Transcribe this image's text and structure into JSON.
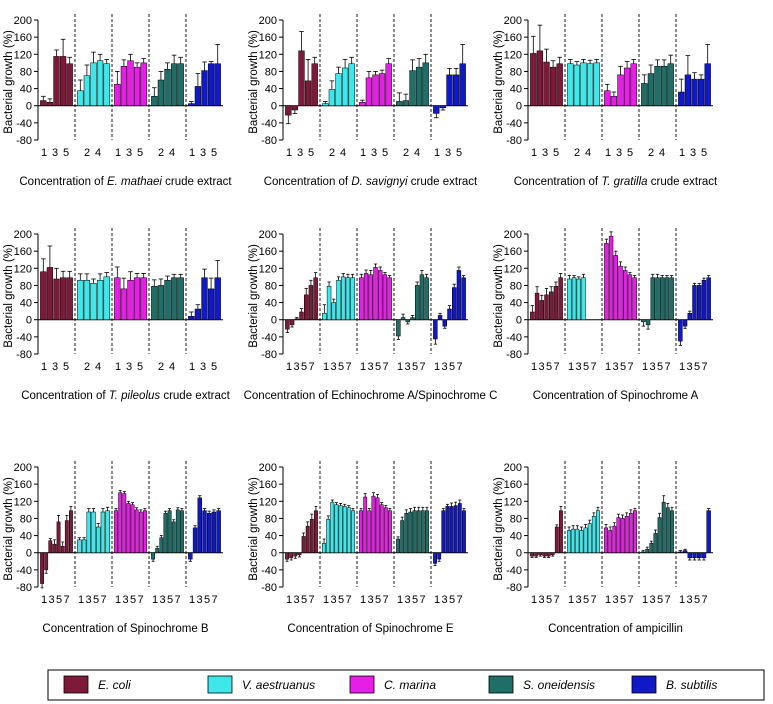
{
  "figure": {
    "y_axis_label": "Bacterial growth (%)",
    "y_ticks": [
      -80,
      -40,
      0,
      40,
      80,
      120,
      160,
      200
    ],
    "legend": [
      {
        "label": "E. coli",
        "color": "#7d1a3a"
      },
      {
        "label": "V. aestruanus",
        "color": "#3ee8ea"
      },
      {
        "label": "C. marina",
        "color": "#e61ee6"
      },
      {
        "label": "S. oneidensis",
        "color": "#1f6f68"
      },
      {
        "label": "B. subtilis",
        "color": "#1018c8"
      }
    ]
  },
  "chart_data": [
    {
      "type": "bar",
      "xlabel_pre": "Concentration of ",
      "xlabel_italic": "E. mathaei",
      "xlabel_post": " crude extract",
      "ylabel": "Bacterial growth (%)",
      "ylim": [
        -80,
        200
      ],
      "x_ticks": [
        [
          "1",
          "3",
          "5"
        ],
        [
          "2",
          "4"
        ],
        [
          "1",
          "3",
          "5"
        ],
        [
          "2",
          "4"
        ],
        [
          "1",
          "3",
          "5"
        ]
      ],
      "series": [
        {
          "values": [
            12,
            8,
            115,
            115,
            98
          ],
          "errors": [
            10,
            8,
            15,
            40,
            15
          ]
        },
        {
          "values": [
            35,
            70,
            100,
            105,
            98
          ],
          "errors": [
            25,
            25,
            25,
            15,
            10
          ]
        },
        {
          "values": [
            50,
            92,
            105,
            90,
            100
          ],
          "errors": [
            30,
            15,
            15,
            10,
            10
          ]
        },
        {
          "values": [
            22,
            60,
            85,
            98,
            98
          ],
          "errors": [
            20,
            20,
            15,
            20,
            15
          ]
        },
        {
          "values": [
            5,
            45,
            82,
            98,
            98
          ],
          "errors": [
            5,
            30,
            20,
            5,
            45
          ]
        }
      ]
    },
    {
      "type": "bar",
      "xlabel_pre": "Concentration of ",
      "xlabel_italic": "D. savignyi",
      "xlabel_post": " crude extract",
      "ylabel": "Bacterial growth (%)",
      "ylim": [
        -80,
        200
      ],
      "x_ticks": [
        [
          "1",
          "3",
          "5"
        ],
        [
          "2",
          "4"
        ],
        [
          "1",
          "3",
          "5"
        ],
        [
          "2",
          "4"
        ],
        [
          "1",
          "3",
          "5"
        ]
      ],
      "series": [
        {
          "values": [
            -22,
            -10,
            128,
            58,
            98
          ],
          "errors": [
            20,
            8,
            45,
            50,
            15
          ]
        },
        {
          "values": [
            5,
            38,
            75,
            88,
            98
          ],
          "errors": [
            5,
            20,
            15,
            20,
            15
          ]
        },
        {
          "values": [
            8,
            65,
            72,
            75,
            98
          ],
          "errors": [
            5,
            15,
            8,
            8,
            12
          ]
        },
        {
          "values": [
            10,
            12,
            82,
            90,
            100
          ],
          "errors": [
            20,
            15,
            25,
            20,
            20
          ]
        },
        {
          "values": [
            -18,
            -5,
            72,
            72,
            98
          ],
          "errors": [
            10,
            5,
            15,
            15,
            45
          ]
        }
      ]
    },
    {
      "type": "bar",
      "xlabel_pre": "Concentration of ",
      "xlabel_italic": "T. gratilla",
      "xlabel_post": " crude extract",
      "ylabel": "Bacterial growth (%)",
      "ylim": [
        -80,
        200
      ],
      "x_ticks": [
        [
          "1",
          "3",
          "5"
        ],
        [
          "2",
          "4"
        ],
        [
          "1",
          "3",
          "5"
        ],
        [
          "2",
          "4"
        ],
        [
          "1",
          "3",
          "5"
        ]
      ],
      "series": [
        {
          "values": [
            122,
            128,
            102,
            90,
            98
          ],
          "errors": [
            40,
            60,
            30,
            15,
            15
          ]
        },
        {
          "values": [
            98,
            95,
            100,
            98,
            100
          ],
          "errors": [
            10,
            8,
            8,
            8,
            8
          ]
        },
        {
          "values": [
            35,
            22,
            72,
            88,
            98
          ],
          "errors": [
            15,
            10,
            20,
            15,
            10
          ]
        },
        {
          "values": [
            52,
            75,
            92,
            92,
            98
          ],
          "errors": [
            20,
            20,
            15,
            15,
            20
          ]
        },
        {
          "values": [
            32,
            72,
            62,
            62,
            98
          ],
          "errors": [
            30,
            45,
            15,
            10,
            45
          ]
        }
      ]
    },
    {
      "type": "bar",
      "xlabel_pre": "Concentration of ",
      "xlabel_italic": "T. pileolus",
      "xlabel_post": " crude extract",
      "ylabel": "Bacterial growth (%)",
      "ylim": [
        -80,
        200
      ],
      "x_ticks": [
        [
          "1",
          "3",
          "5"
        ],
        [
          "2",
          "4"
        ],
        [
          "1",
          "3",
          "5"
        ],
        [
          "2",
          "4"
        ],
        [
          "1",
          "3",
          "5"
        ]
      ],
      "series": [
        {
          "values": [
            112,
            122,
            95,
            98,
            98
          ],
          "errors": [
            30,
            50,
            25,
            15,
            15
          ]
        },
        {
          "values": [
            92,
            92,
            85,
            92,
            100
          ],
          "errors": [
            15,
            15,
            10,
            15,
            10
          ]
        },
        {
          "values": [
            98,
            72,
            92,
            98,
            98
          ],
          "errors": [
            25,
            25,
            20,
            10,
            10
          ]
        },
        {
          "values": [
            78,
            80,
            92,
            98,
            98
          ],
          "errors": [
            15,
            15,
            10,
            8,
            8
          ]
        },
        {
          "values": [
            8,
            25,
            98,
            72,
            98
          ],
          "errors": [
            10,
            10,
            20,
            25,
            40
          ]
        }
      ]
    },
    {
      "type": "bar",
      "xlabel_pre": "Concentration of Echinochrome A/Spinochrome C",
      "xlabel_italic": "",
      "xlabel_post": "",
      "ylabel": "Bacterial growth (%)",
      "ylim": [
        -80,
        200
      ],
      "x_ticks": [
        [
          "1",
          "3",
          "5",
          "7"
        ],
        [
          "1",
          "3",
          "5",
          "7"
        ],
        [
          "1",
          "3",
          "5",
          "7"
        ],
        [
          "1",
          "3",
          "5",
          "7"
        ],
        [
          "1",
          "3",
          "5",
          "7"
        ]
      ],
      "series": [
        {
          "values": [
            -22,
            -12,
            2,
            18,
            58,
            80,
            98
          ],
          "errors": [
            8,
            5,
            3,
            8,
            15,
            12,
            12
          ]
        },
        {
          "values": [
            15,
            78,
            40,
            92,
            100,
            98,
            98
          ],
          "errors": [
            20,
            10,
            8,
            8,
            8,
            8,
            8
          ]
        },
        {
          "values": [
            98,
            108,
            105,
            122,
            115,
            105,
            98
          ],
          "errors": [
            8,
            8,
            10,
            8,
            8,
            5,
            5
          ]
        },
        {
          "values": [
            -38,
            5,
            -5,
            5,
            80,
            105,
            98
          ],
          "errors": [
            8,
            8,
            5,
            5,
            8,
            10,
            8
          ]
        },
        {
          "values": [
            -45,
            10,
            -15,
            25,
            75,
            115,
            98
          ],
          "errors": [
            12,
            5,
            5,
            8,
            8,
            8,
            5
          ]
        }
      ]
    },
    {
      "type": "bar",
      "xlabel_pre": "Concentration of Spinochrome A",
      "xlabel_italic": "",
      "xlabel_post": "",
      "ylabel": "Bacterial growth (%)",
      "ylim": [
        -80,
        200
      ],
      "x_ticks": [
        [
          "1",
          "3",
          "5",
          "7"
        ],
        [
          "1",
          "3",
          "5",
          "7"
        ],
        [
          "1",
          "3",
          "5",
          "7"
        ],
        [
          "1",
          "3",
          "5",
          "7"
        ],
        [
          "1",
          "3",
          "5",
          "7"
        ]
      ],
      "series": [
        {
          "values": [
            18,
            62,
            45,
            58,
            65,
            78,
            98
          ],
          "errors": [
            15,
            15,
            12,
            15,
            12,
            10,
            10
          ]
        },
        {
          "values": [
            95,
            98,
            95,
            98,
            0,
            0,
            0
          ],
          "errors": [
            8,
            5,
            5,
            8,
            0,
            0,
            0
          ]
        },
        {
          "values": [
            178,
            195,
            150,
            125,
            115,
            105,
            98
          ],
          "errors": [
            10,
            10,
            10,
            10,
            8,
            5,
            5
          ]
        },
        {
          "values": [
            -5,
            -12,
            98,
            98,
            98,
            98,
            98
          ],
          "errors": [
            10,
            10,
            8,
            8,
            5,
            5,
            5
          ]
        },
        {
          "values": [
            -50,
            -15,
            15,
            80,
            80,
            92,
            98
          ],
          "errors": [
            10,
            5,
            5,
            5,
            5,
            5,
            5
          ]
        }
      ]
    },
    {
      "type": "bar",
      "xlabel_pre": "Concentration of Spinochrome B",
      "xlabel_italic": "",
      "xlabel_post": "",
      "ylabel": "Bacterial growth (%)",
      "ylim": [
        -80,
        200
      ],
      "x_ticks": [
        [
          "1",
          "3",
          "5",
          "7"
        ],
        [
          "1",
          "3",
          "5",
          "7"
        ],
        [
          "1",
          "3",
          "5",
          "7"
        ],
        [
          "1",
          "3",
          "5",
          "7"
        ],
        [
          "1",
          "3",
          "5",
          "7"
        ]
      ],
      "series": [
        {
          "values": [
            -72,
            -40,
            28,
            20,
            72,
            15,
            75,
            98
          ],
          "errors": [
            10,
            8,
            5,
            10,
            15,
            10,
            12,
            10
          ]
        },
        {
          "values": [
            30,
            30,
            95,
            95,
            60,
            95,
            98
          ],
          "errors": [
            5,
            5,
            8,
            8,
            8,
            8,
            8
          ]
        },
        {
          "values": [
            98,
            140,
            138,
            115,
            112,
            100,
            95,
            98
          ],
          "errors": [
            5,
            5,
            5,
            5,
            5,
            5,
            5,
            5
          ]
        },
        {
          "values": [
            -15,
            10,
            35,
            92,
            98,
            72,
            100,
            98
          ],
          "errors": [
            5,
            5,
            5,
            5,
            5,
            5,
            5,
            5
          ]
        },
        {
          "values": [
            -15,
            58,
            128,
            98,
            92,
            95,
            98
          ],
          "errors": [
            5,
            5,
            5,
            5,
            5,
            5,
            5
          ]
        }
      ]
    },
    {
      "type": "bar",
      "xlabel_pre": "Concentration of Spinochrome E",
      "xlabel_italic": "",
      "xlabel_post": "",
      "ylabel": "Bacterial growth (%)",
      "ylim": [
        -80,
        200
      ],
      "x_ticks": [
        [
          "1",
          "3",
          "5",
          "7"
        ],
        [
          "1",
          "3",
          "5",
          "7"
        ],
        [
          "1",
          "3",
          "5",
          "7"
        ],
        [
          "1",
          "3",
          "5",
          "7"
        ],
        [
          "1",
          "3",
          "5",
          "7"
        ]
      ],
      "series": [
        {
          "values": [
            -15,
            -12,
            -8,
            -5,
            38,
            62,
            78,
            98
          ],
          "errors": [
            5,
            5,
            5,
            5,
            8,
            10,
            12,
            10
          ]
        },
        {
          "values": [
            22,
            78,
            118,
            112,
            110,
            108,
            105,
            98
          ],
          "errors": [
            10,
            8,
            5,
            5,
            5,
            5,
            5,
            5
          ]
        },
        {
          "values": [
            98,
            130,
            98,
            132,
            128,
            112,
            105,
            98
          ],
          "errors": [
            5,
            8,
            5,
            8,
            8,
            5,
            5,
            5
          ]
        },
        {
          "values": [
            32,
            75,
            92,
            95,
            98,
            98,
            98,
            98
          ],
          "errors": [
            5,
            8,
            8,
            8,
            8,
            8,
            8,
            8
          ]
        },
        {
          "values": [
            -25,
            -15,
            98,
            108,
            108,
            110,
            115,
            98
          ],
          "errors": [
            5,
            5,
            5,
            5,
            8,
            8,
            8,
            5
          ]
        }
      ]
    },
    {
      "type": "bar",
      "xlabel_pre": "Concentration of ampicillin",
      "xlabel_italic": "",
      "xlabel_post": "",
      "ylabel": "Bacterial growth (%)",
      "ylim": [
        -80,
        200
      ],
      "x_ticks": [
        [
          "1",
          "3",
          "5",
          "7"
        ],
        [
          "1",
          "3",
          "5",
          "7"
        ],
        [
          "1",
          "3",
          "5",
          "7"
        ],
        [
          "1",
          "3",
          "5",
          "7"
        ],
        [
          "1",
          "3",
          "5",
          "7"
        ]
      ],
      "series": [
        {
          "values": [
            -8,
            -8,
            -5,
            -8,
            -8,
            -5,
            60,
            98
          ],
          "errors": [
            3,
            3,
            3,
            3,
            3,
            3,
            5,
            10
          ]
        },
        {
          "values": [
            52,
            55,
            55,
            52,
            58,
            68,
            85,
            98
          ],
          "errors": [
            8,
            8,
            8,
            8,
            8,
            8,
            8,
            8
          ]
        },
        {
          "values": [
            58,
            52,
            62,
            82,
            80,
            85,
            92,
            98
          ],
          "errors": [
            8,
            8,
            8,
            8,
            8,
            8,
            8,
            5
          ]
        },
        {
          "values": [
            2,
            8,
            22,
            45,
            82,
            118,
            105,
            98
          ],
          "errors": [
            3,
            5,
            5,
            8,
            10,
            15,
            10,
            8
          ]
        },
        {
          "values": [
            2,
            5,
            -12,
            -12,
            -12,
            -12,
            98
          ],
          "errors": [
            3,
            3,
            5,
            5,
            5,
            5,
            5
          ]
        }
      ]
    }
  ]
}
